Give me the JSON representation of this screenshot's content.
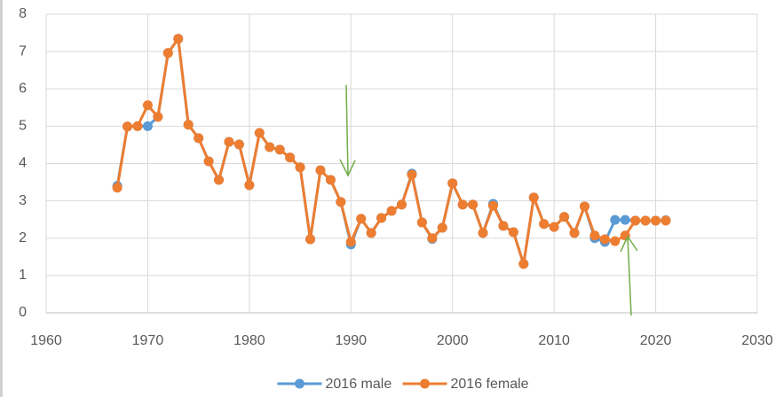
{
  "chart_data": {
    "type": "line",
    "x": [
      1967,
      1968,
      1969,
      1970,
      1971,
      1972,
      1973,
      1974,
      1975,
      1976,
      1977,
      1978,
      1979,
      1980,
      1981,
      1982,
      1983,
      1984,
      1985,
      1986,
      1987,
      1988,
      1989,
      1990,
      1991,
      1992,
      1993,
      1994,
      1995,
      1996,
      1997,
      1998,
      1999,
      2000,
      2001,
      2002,
      2003,
      2004,
      2005,
      2006,
      2007,
      2008,
      2009,
      2010,
      2011,
      2012,
      2013,
      2014,
      2015,
      2016,
      2017,
      2018,
      2019,
      2020,
      2021
    ],
    "series": [
      {
        "name": "2016 male",
        "color": "#5b9bd5",
        "values": [
          3.4,
          4.99,
          5.0,
          5.0,
          5.25,
          6.96,
          7.34,
          5.04,
          4.68,
          4.06,
          3.56,
          4.58,
          4.51,
          3.42,
          4.82,
          4.44,
          4.37,
          4.16,
          3.9,
          1.97,
          3.82,
          3.56,
          2.97,
          1.83,
          2.52,
          2.14,
          2.54,
          2.73,
          2.9,
          3.73,
          2.42,
          1.98,
          2.28,
          3.47,
          2.9,
          2.9,
          2.14,
          2.92,
          2.33,
          2.16,
          1.31,
          3.09,
          2.38,
          2.3,
          2.57,
          2.14,
          2.85,
          2.0,
          1.9,
          2.49,
          2.49,
          2.47,
          2.47,
          2.47,
          2.48
        ]
      },
      {
        "name": "2016 female",
        "color": "#ed7d31",
        "values": [
          3.35,
          4.99,
          5.0,
          5.56,
          5.25,
          6.96,
          7.34,
          5.04,
          4.68,
          4.06,
          3.56,
          4.58,
          4.51,
          3.42,
          4.82,
          4.44,
          4.37,
          4.16,
          3.9,
          1.97,
          3.82,
          3.56,
          2.97,
          1.9,
          2.52,
          2.14,
          2.54,
          2.73,
          2.9,
          3.7,
          2.42,
          2.0,
          2.28,
          3.47,
          2.9,
          2.9,
          2.14,
          2.87,
          2.33,
          2.16,
          1.31,
          3.09,
          2.38,
          2.3,
          2.57,
          2.14,
          2.85,
          2.07,
          1.97,
          1.92,
          2.07,
          2.47,
          2.47,
          2.47,
          2.47
        ]
      }
    ],
    "xlim": [
      1960,
      2030
    ],
    "xticks": [
      1960,
      1970,
      1980,
      1990,
      2000,
      2010,
      2020,
      2030
    ],
    "ylim": [
      0,
      8
    ],
    "yticks": [
      0,
      1,
      2,
      3,
      4,
      5,
      6,
      7,
      8
    ],
    "grid": true,
    "legend": "bottom"
  }
}
